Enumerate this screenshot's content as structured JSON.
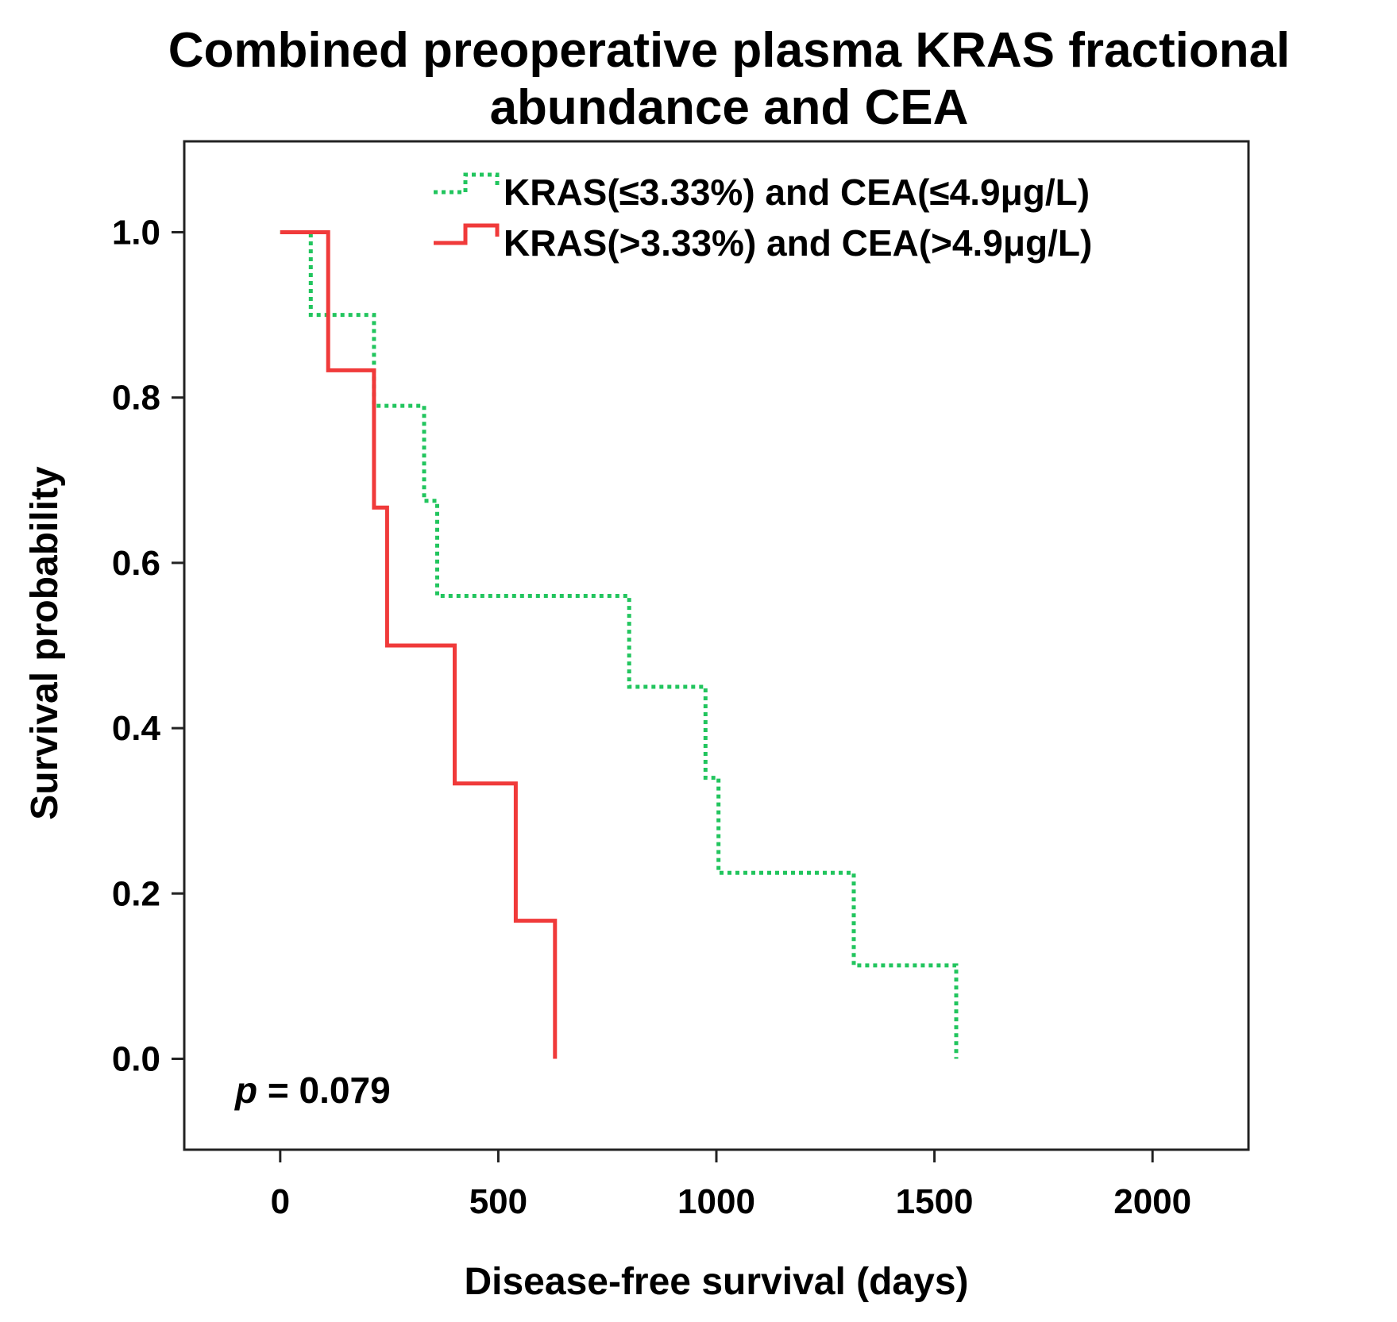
{
  "chart_data": {
    "type": "line",
    "subtype": "kaplan-meier-step",
    "title_lines": [
      "Combined preoperative plasma KRAS fractional",
      "abundance and CEA"
    ],
    "xlabel": "Disease-free survival (days)",
    "ylabel": "Survival probability",
    "xlim": [
      -220,
      2220
    ],
    "ylim": [
      -0.11,
      1.11
    ],
    "x_ticks": [
      0,
      500,
      1000,
      1500,
      2000
    ],
    "y_ticks": [
      0.0,
      0.2,
      0.4,
      0.6,
      0.8,
      1.0
    ],
    "y_tick_labels": [
      "0.0",
      "0.2",
      "0.4",
      "0.6",
      "0.8",
      "1.0"
    ],
    "grid": false,
    "legend_position": "top-right",
    "series": [
      {
        "name": "KRAS(≤3.33%) and CEA(≤4.9μg/L)",
        "color": "#22c55e",
        "style": "dotted",
        "points": [
          [
            0,
            1.0
          ],
          [
            70,
            1.0
          ],
          [
            70,
            0.9
          ],
          [
            215,
            0.9
          ],
          [
            215,
            0.79
          ],
          [
            330,
            0.79
          ],
          [
            330,
            0.675
          ],
          [
            360,
            0.675
          ],
          [
            360,
            0.56
          ],
          [
            800,
            0.56
          ],
          [
            800,
            0.45
          ],
          [
            975,
            0.45
          ],
          [
            975,
            0.34
          ],
          [
            1005,
            0.34
          ],
          [
            1005,
            0.225
          ],
          [
            1315,
            0.225
          ],
          [
            1315,
            0.113
          ],
          [
            1550,
            0.113
          ],
          [
            1550,
            0.0
          ]
        ]
      },
      {
        "name": "KRAS(>3.33%) and CEA(>4.9μg/L)",
        "color": "#f03a3a",
        "style": "solid",
        "points": [
          [
            0,
            1.0
          ],
          [
            110,
            1.0
          ],
          [
            110,
            0.833
          ],
          [
            215,
            0.833
          ],
          [
            215,
            0.667
          ],
          [
            245,
            0.667
          ],
          [
            245,
            0.5
          ],
          [
            400,
            0.5
          ],
          [
            400,
            0.333
          ],
          [
            540,
            0.333
          ],
          [
            540,
            0.167
          ],
          [
            630,
            0.167
          ],
          [
            630,
            0.0
          ]
        ]
      }
    ],
    "annotation": {
      "italic": "p",
      "text": " = 0.079"
    }
  }
}
